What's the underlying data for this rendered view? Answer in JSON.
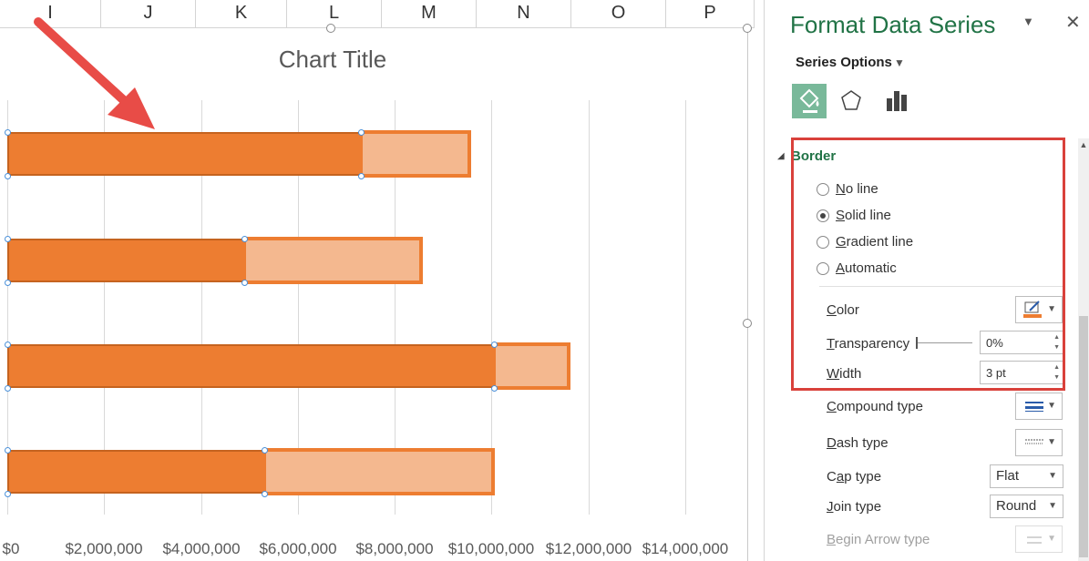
{
  "columns": [
    "I",
    "J",
    "K",
    "L",
    "M",
    "N",
    "O",
    "P"
  ],
  "chart": {
    "title": "Chart Title",
    "x_tick_labels": [
      "$0",
      "$2,000,000",
      "$4,000,000",
      "$6,000,000",
      "$8,000,000",
      "$10,000,000",
      "$12,000,000",
      "$14,000,000"
    ]
  },
  "chart_data": {
    "type": "bar",
    "title": "Chart Title",
    "orientation": "horizontal",
    "stacked": true,
    "xlim": [
      0,
      14000000
    ],
    "categories": [
      "",
      "",
      "",
      ""
    ],
    "series": [
      {
        "values": [
          7300000,
          4900000,
          10050000,
          5300000
        ]
      },
      {
        "values": [
          2200000,
          3600000,
          1500000,
          4700000
        ]
      }
    ],
    "colors": [
      "#ed7d31",
      "#f4b88f"
    ],
    "grid": true,
    "legend": "none"
  },
  "pane": {
    "title": "Format Data Series",
    "series_options_label": "Series Options",
    "section_title": "Border",
    "radios": [
      {
        "label": "No line",
        "checked": false
      },
      {
        "label": "Solid line",
        "checked": true
      },
      {
        "label": "Gradient line",
        "checked": false
      },
      {
        "label": "Automatic",
        "checked": false
      }
    ],
    "color_label": "Color",
    "transparency_label": "Transparency",
    "transparency_value": "0%",
    "width_label": "Width",
    "width_value": "3 pt",
    "compound_label": "Compound type",
    "dash_label": "Dash type",
    "cap_label": "Cap type",
    "cap_value": "Flat",
    "join_label": "Join type",
    "join_value": "Round",
    "begin_arrow_label": "Begin Arrow type"
  },
  "colors": {
    "accent": "#217346",
    "bar": "#ed7d31",
    "bar_light": "#f4b88f",
    "highlight": "#d9413b",
    "arrow": "#e84c47"
  }
}
